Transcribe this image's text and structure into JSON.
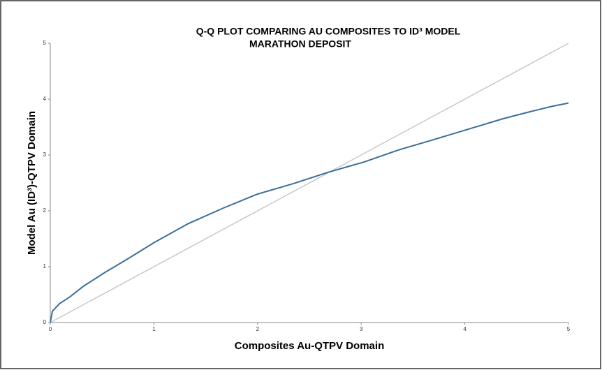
{
  "chart_data": {
    "type": "line",
    "title": "Q-Q PLOT COMPARING AU COMPOSITES TO ID³ MODEL",
    "subtitle": "MARATHON  DEPOSIT",
    "x_label": "Composites Au-QTPV Domain",
    "y_label": "Model Au (ID³)-QTPV Domain",
    "xlim": [
      0,
      5
    ],
    "ylim": [
      0,
      5
    ],
    "xticks": [
      0,
      1,
      2,
      3,
      4,
      5
    ],
    "yticks": [
      0,
      1,
      2,
      3,
      4,
      5
    ],
    "series": [
      {
        "color": "#c8c8c8",
        "x": [
          0,
          5
        ],
        "values": [
          0,
          5
        ]
      },
      {
        "color": "#3b6e9a",
        "x": [
          0,
          0.02,
          0.09,
          0.19,
          0.32,
          0.53,
          0.73,
          1.0,
          1.33,
          1.67,
          2.0,
          2.35,
          2.68,
          3.02,
          3.36,
          3.69,
          4.03,
          4.37,
          4.64,
          4.84,
          5.0
        ],
        "values": [
          0,
          0.2,
          0.34,
          0.46,
          0.65,
          0.9,
          1.12,
          1.43,
          1.77,
          2.05,
          2.3,
          2.49,
          2.69,
          2.87,
          3.09,
          3.27,
          3.46,
          3.65,
          3.78,
          3.87,
          3.93
        ]
      }
    ]
  }
}
